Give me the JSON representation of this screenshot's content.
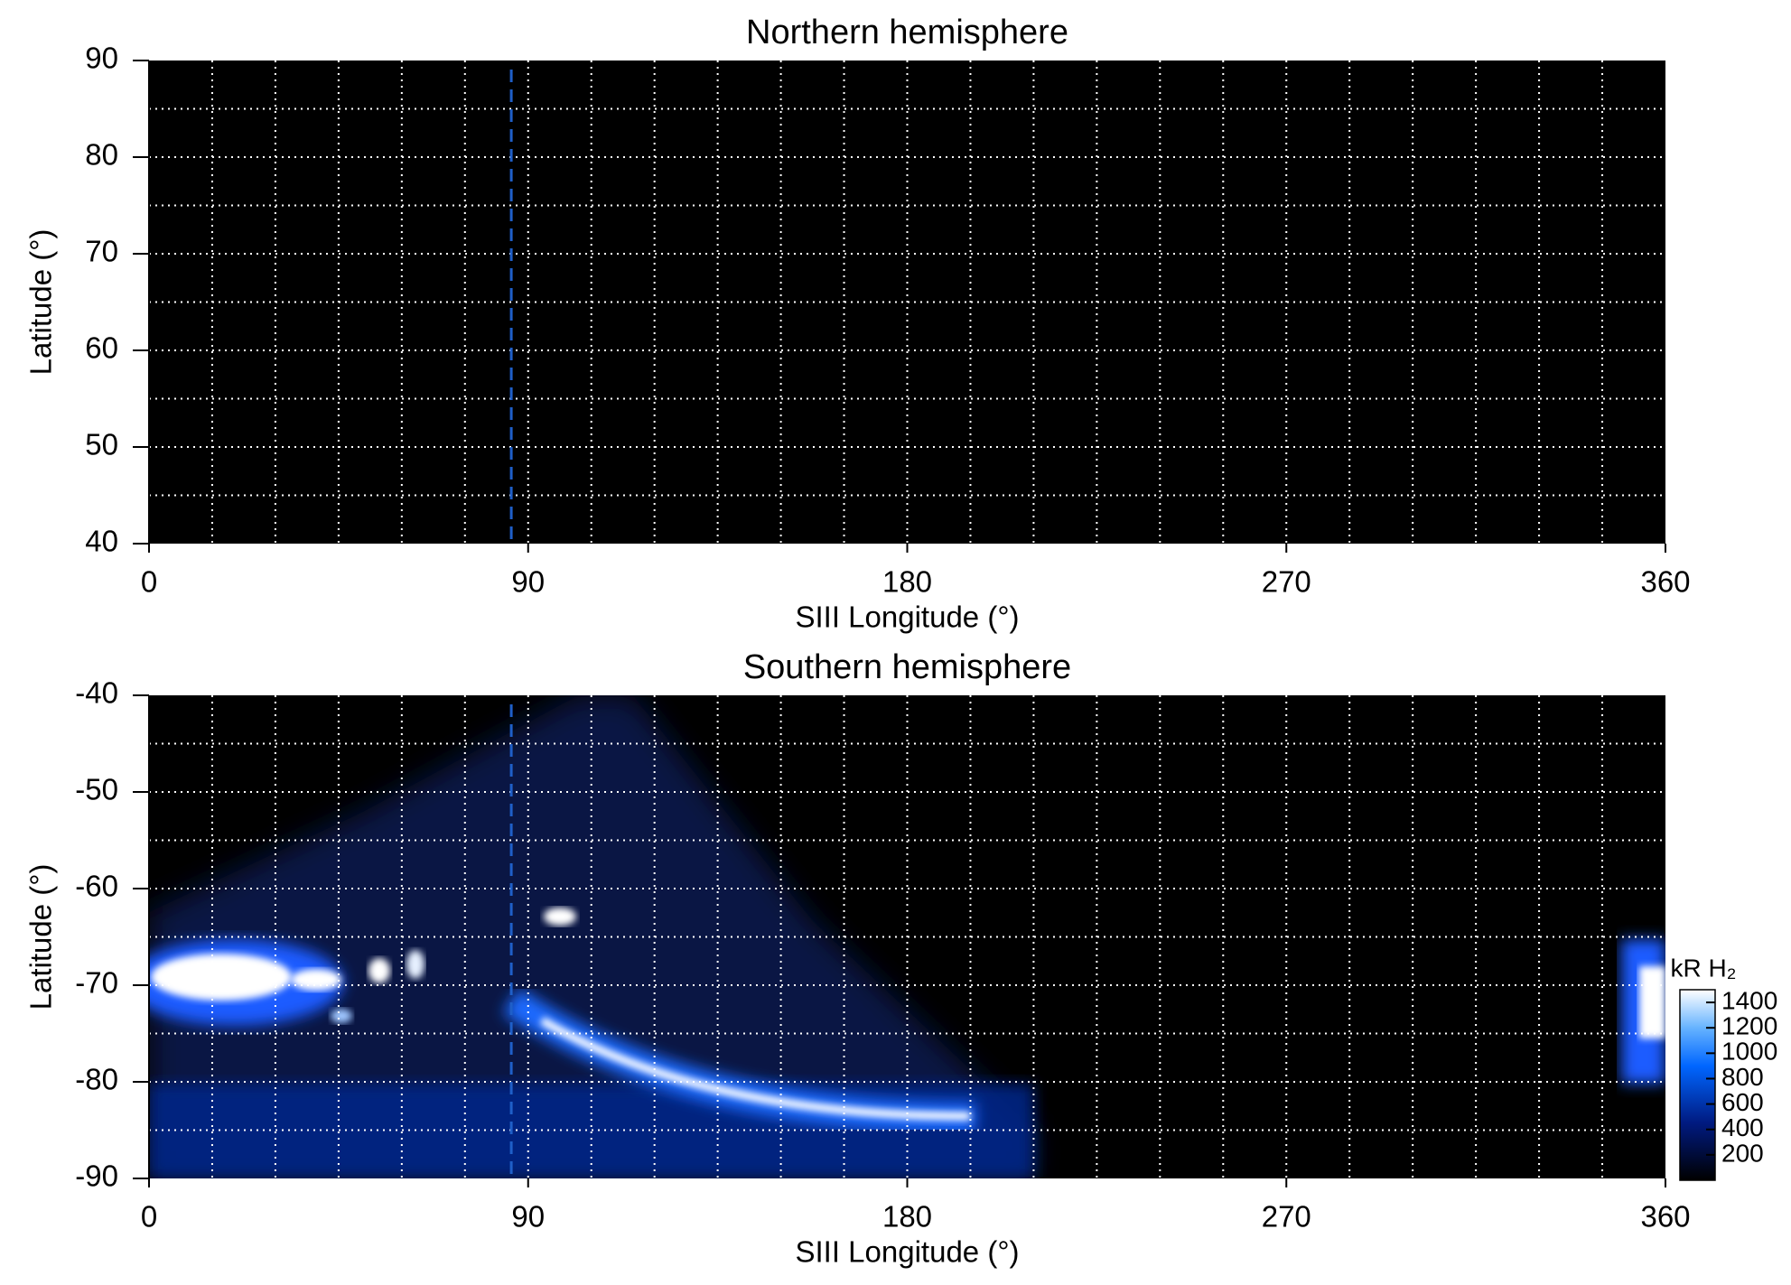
{
  "chart_data": [
    {
      "type": "heatmap",
      "title": "Northern hemisphere",
      "xlabel": "SIII Longitude (°)",
      "ylabel": "Latitude (°)",
      "xlim": [
        0,
        360
      ],
      "xticks": [
        0,
        90,
        180,
        270,
        360
      ],
      "ylim": [
        40,
        90
      ],
      "yticks": [
        40,
        50,
        60,
        70,
        80,
        90
      ],
      "xgrid": [
        15,
        30,
        45,
        60,
        75,
        90,
        105,
        120,
        135,
        150,
        165,
        180,
        195,
        210,
        225,
        240,
        255,
        270,
        285,
        300,
        315,
        330,
        345
      ],
      "ygrid": [
        45,
        50,
        55,
        60,
        65,
        70,
        75,
        80,
        85
      ],
      "vline": 86,
      "vline_color": "#1f5fc8"
    },
    {
      "type": "heatmap",
      "title": "Southern hemisphere",
      "xlabel": "SIII Longitude (°)",
      "ylabel": "Latitude (°)",
      "xlim": [
        0,
        360
      ],
      "xticks": [
        0,
        90,
        180,
        270,
        360
      ],
      "ylim": [
        -90,
        -40
      ],
      "yticks": [
        -40,
        -50,
        -60,
        -70,
        -80,
        -90
      ],
      "xgrid": [
        15,
        30,
        45,
        60,
        75,
        90,
        105,
        120,
        135,
        150,
        165,
        180,
        195,
        210,
        225,
        240,
        255,
        270,
        285,
        300,
        315,
        330,
        345
      ],
      "ygrid": [
        -45,
        -50,
        -55,
        -60,
        -65,
        -70,
        -75,
        -80,
        -85
      ],
      "vline": 86,
      "vline_color": "#1f5fc8",
      "colorbar": {
        "label": "kR H₂",
        "lim": [
          0,
          1500
        ],
        "ticks": [
          200,
          400,
          600,
          800,
          1000,
          1200,
          1400
        ]
      }
    }
  ]
}
